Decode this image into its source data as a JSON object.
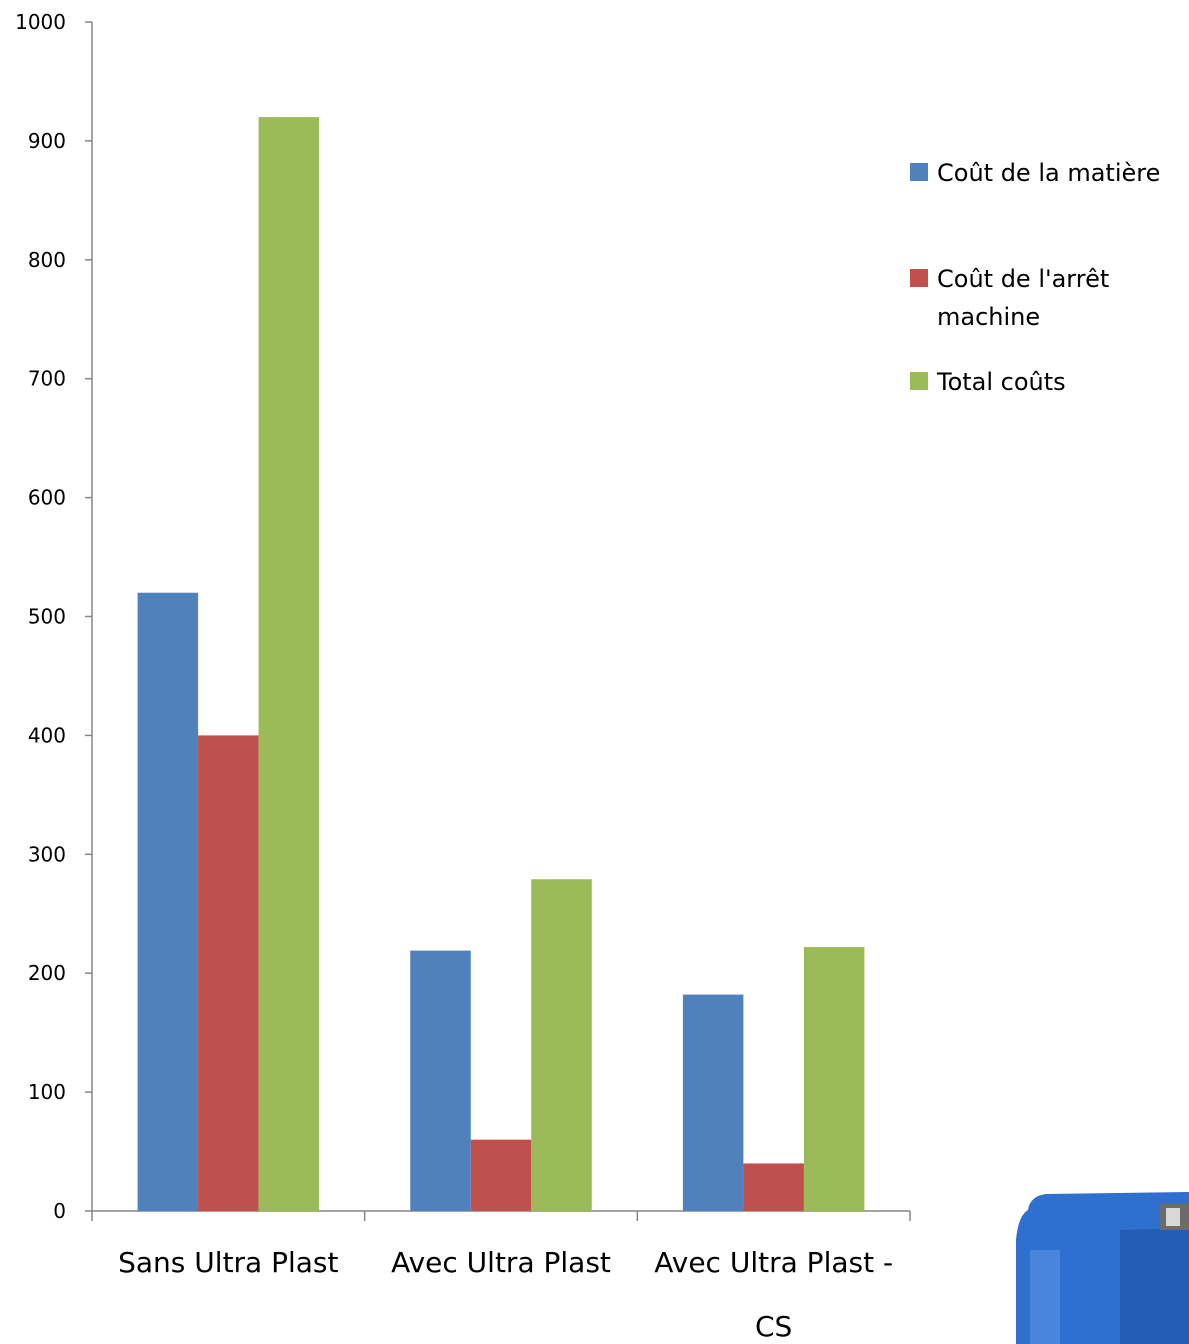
{
  "chart_data": {
    "type": "bar",
    "title": "",
    "xlabel": "",
    "ylabel": "",
    "ylim": [
      0,
      1000
    ],
    "yticks": [
      0,
      100,
      200,
      300,
      400,
      500,
      600,
      700,
      800,
      900,
      1000
    ],
    "categories": [
      [
        "Sans Ultra Plast"
      ],
      [
        "Avec Ultra Plast"
      ],
      [
        "Avec Ultra Plast -",
        "CS"
      ]
    ],
    "series": [
      {
        "name": "Coût de la matière",
        "name_lines": [
          "Coût de la matière"
        ],
        "color": "#4f81bd",
        "values": [
          520,
          219,
          182
        ]
      },
      {
        "name": "Coût de l'arrêt machine",
        "name_lines": [
          "Coût de l'arrêt",
          "machine"
        ],
        "color": "#c0504d",
        "values": [
          400,
          60,
          40
        ]
      },
      {
        "name": "Total coûts",
        "name_lines": [
          "Total coûts"
        ],
        "color": "#9bbb59",
        "values": [
          920,
          279,
          222
        ]
      }
    ],
    "grid": false,
    "legend_position": "right"
  },
  "decoration": {
    "jerrycan_color": "#2f6fd0",
    "icon": "jerrycan-image"
  }
}
